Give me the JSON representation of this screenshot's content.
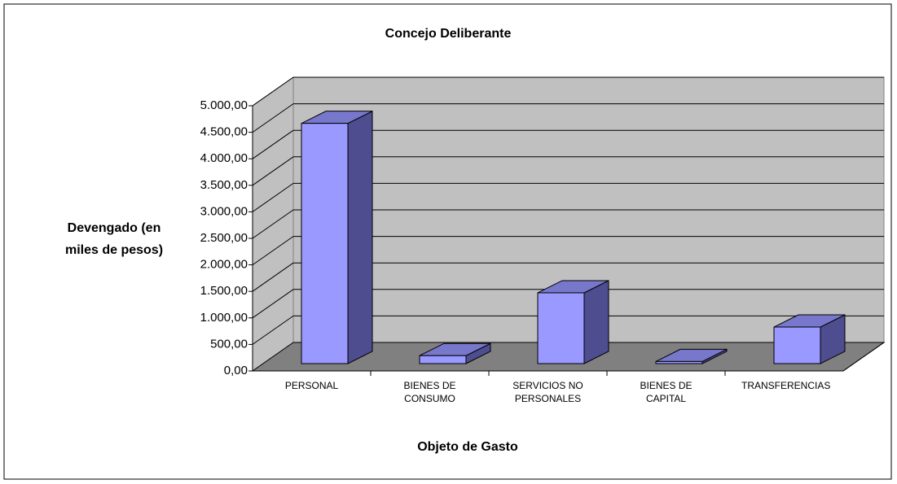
{
  "chart_data": {
    "type": "bar3d",
    "title": "Concejo Deliberante",
    "y_axis_label": "Devengado (en miles de pesos)",
    "x_axis_label": "Objeto de Gasto",
    "categories": [
      "PERSONAL",
      "BIENES DE CONSUMO",
      "SERVICIOS NO PERSONALES",
      "BIENES DE CAPITAL",
      "TRANSFERENCIAS"
    ],
    "values": [
      4530,
      150,
      1335,
      40,
      690
    ],
    "color": "#9999ff",
    "side_color": "#4d4d8f",
    "top_color": "#7777cc",
    "ylim": [
      0,
      5000
    ],
    "yticks": [
      {
        "value": 0,
        "label": "0,00"
      },
      {
        "value": 500,
        "label": "500,00"
      },
      {
        "value": 1000,
        "label": "1.000,00"
      },
      {
        "value": 1500,
        "label": "1.500,00"
      },
      {
        "value": 2000,
        "label": "2.000,00"
      },
      {
        "value": 2500,
        "label": "2.500,00"
      },
      {
        "value": 3000,
        "label": "3.000,00"
      },
      {
        "value": 3500,
        "label": "3.500,00"
      },
      {
        "value": 4000,
        "label": "4.000,00"
      },
      {
        "value": 4500,
        "label": "4.500,00"
      },
      {
        "value": 5000,
        "label": "5.000,00"
      }
    ],
    "grid": true
  }
}
